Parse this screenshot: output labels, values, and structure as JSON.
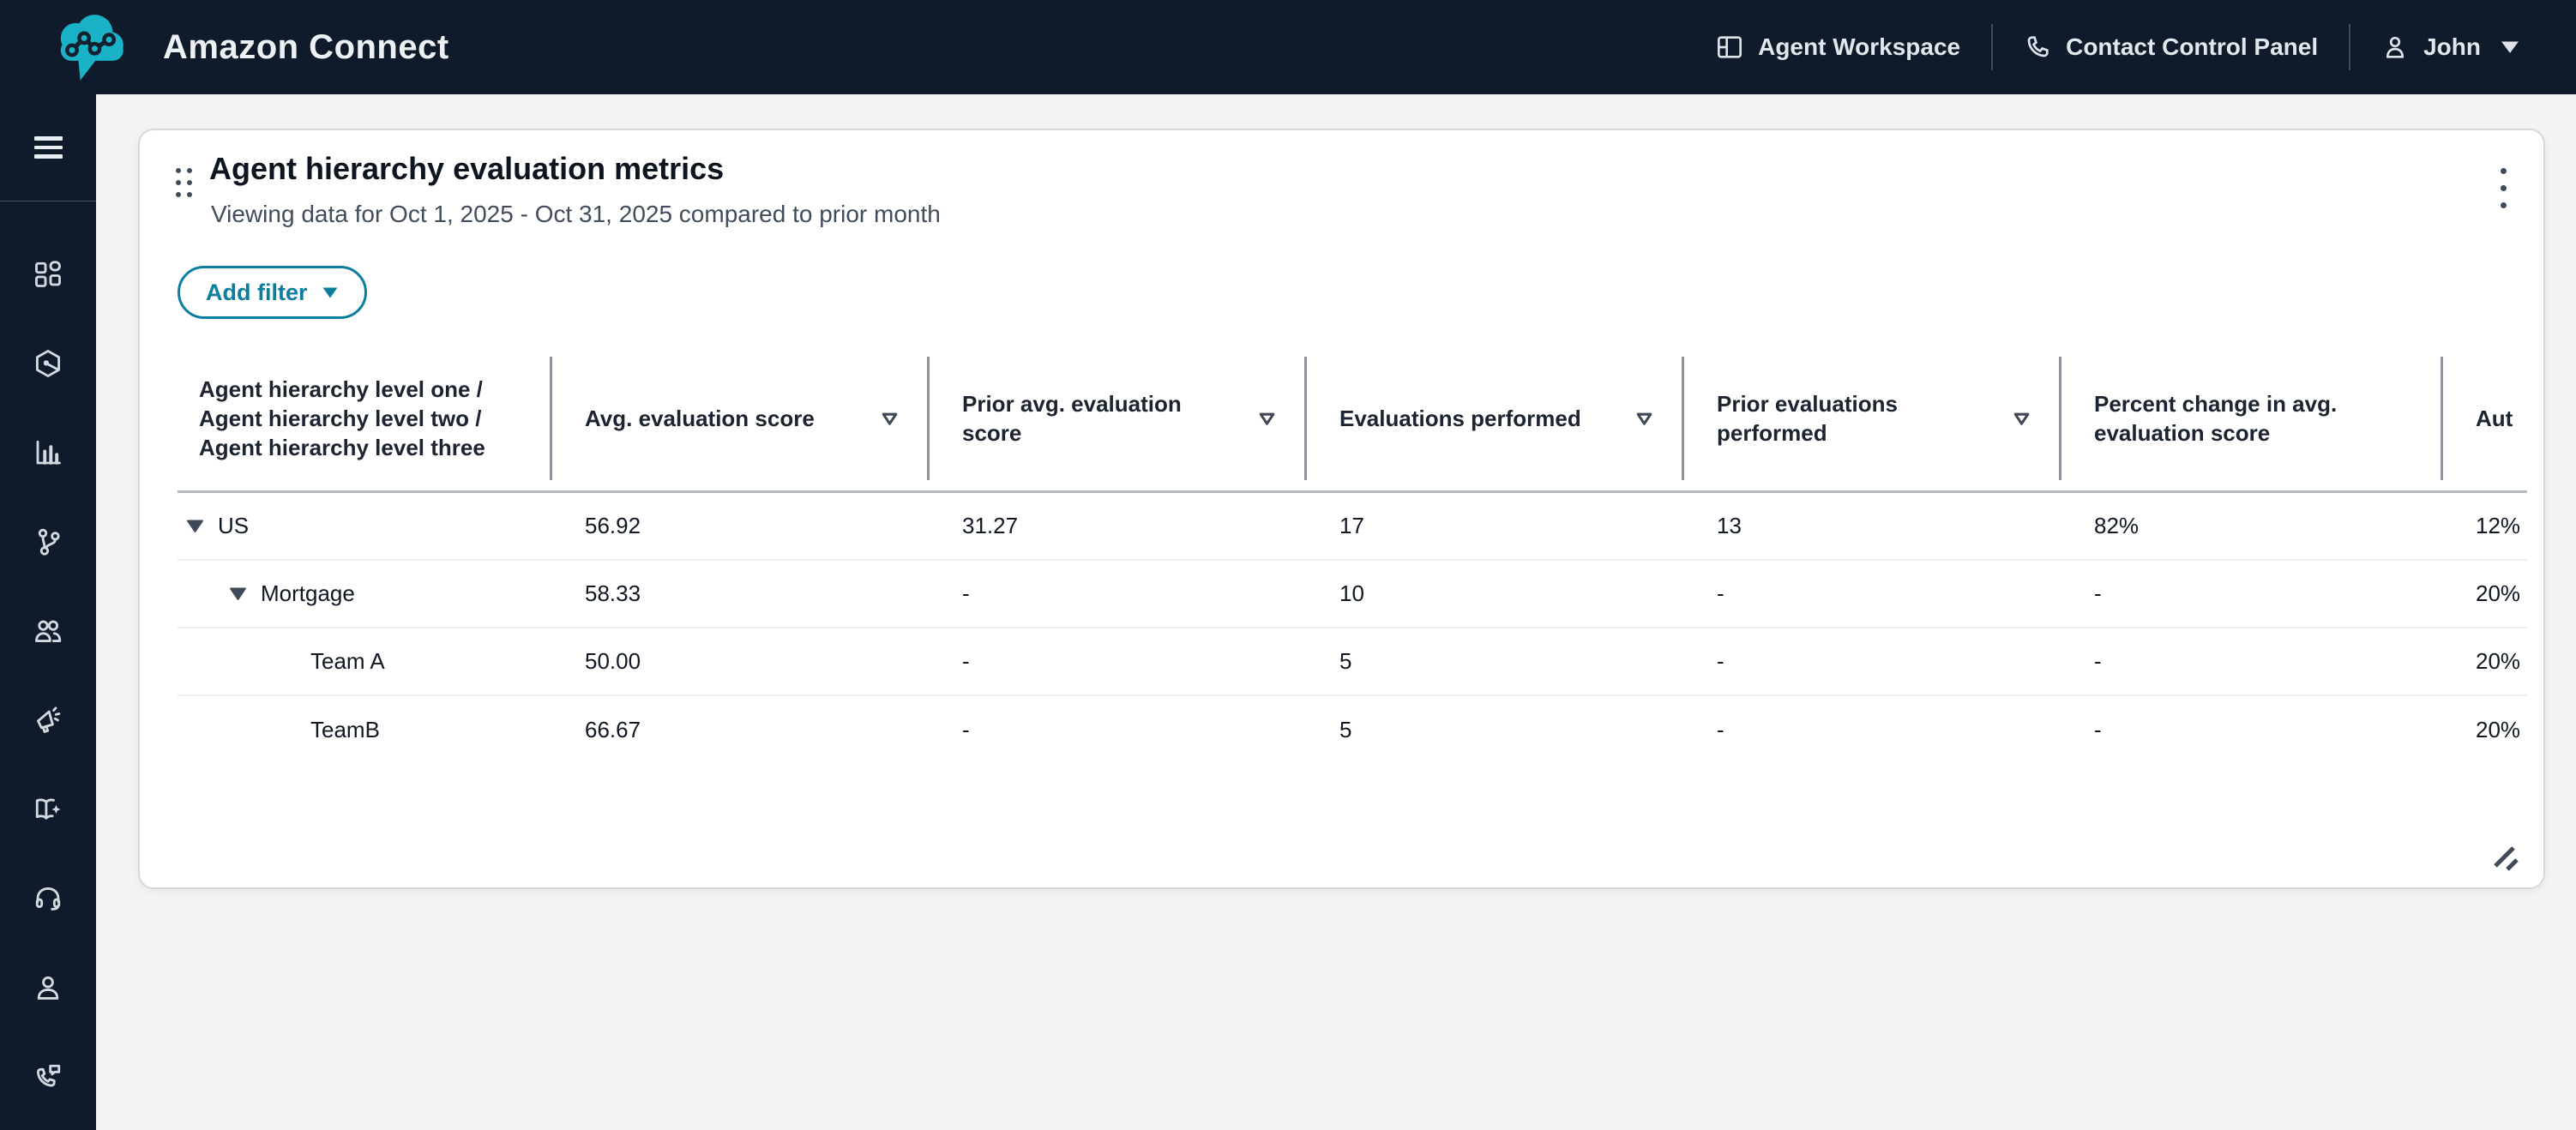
{
  "topbar": {
    "brand": "Amazon Connect",
    "nav": [
      {
        "label": "Agent Workspace",
        "icon": "workspace-icon"
      },
      {
        "label": "Contact Control Panel",
        "icon": "phone-icon"
      },
      {
        "label": "John",
        "icon": "person-icon"
      }
    ]
  },
  "sidebar": {
    "items": [
      {
        "icon": "menu-icon"
      },
      {
        "icon": "apps-grid-icon"
      },
      {
        "icon": "hexagon-node-icon"
      },
      {
        "icon": "bar-chart-icon"
      },
      {
        "icon": "branch-icon"
      },
      {
        "icon": "users-icon"
      },
      {
        "icon": "megaphone-icon"
      },
      {
        "icon": "book-sparkle-icon"
      },
      {
        "icon": "headset-icon"
      },
      {
        "icon": "person-icon"
      },
      {
        "icon": "phone-chat-icon"
      }
    ]
  },
  "widget": {
    "title": "Agent hierarchy evaluation metrics",
    "subtitle": "Viewing data for Oct 1, 2025 - Oct 31, 2025 compared to prior month",
    "add_filter_label": "Add filter",
    "table": {
      "columns": [
        {
          "label": "Agent hierarchy level one / Agent hierarchy level two / Agent hierarchy level three",
          "filterable": false
        },
        {
          "label": "Avg. evaluation score",
          "filterable": true
        },
        {
          "label": "Prior avg. evaluation score",
          "filterable": true
        },
        {
          "label": "Evaluations performed",
          "filterable": true
        },
        {
          "label": "Prior evaluations performed",
          "filterable": true
        },
        {
          "label": "Percent change in avg. evaluation score",
          "filterable": false
        },
        {
          "label": "Aut",
          "filterable": false
        }
      ],
      "rows": [
        {
          "name": "US",
          "level": 1,
          "expanded": true,
          "values": [
            "56.92",
            "31.27",
            "17",
            "13",
            "82%",
            "12%"
          ]
        },
        {
          "name": "Mortgage",
          "level": 2,
          "expanded": true,
          "values": [
            "58.33",
            "-",
            "10",
            "-",
            "-",
            "20%"
          ]
        },
        {
          "name": "Team A",
          "level": 3,
          "expanded": false,
          "values": [
            "50.00",
            "-",
            "5",
            "-",
            "-",
            "20%"
          ]
        },
        {
          "name": "TeamB",
          "level": 3,
          "expanded": false,
          "values": [
            "66.67",
            "-",
            "5",
            "-",
            "-",
            "20%"
          ]
        }
      ]
    }
  },
  "colors": {
    "topbar_bg": "#0f1b2a",
    "logo_teal": "#19b2c6",
    "accent_teal": "#0b7d9e",
    "page_bg": "#f2f3f3"
  }
}
